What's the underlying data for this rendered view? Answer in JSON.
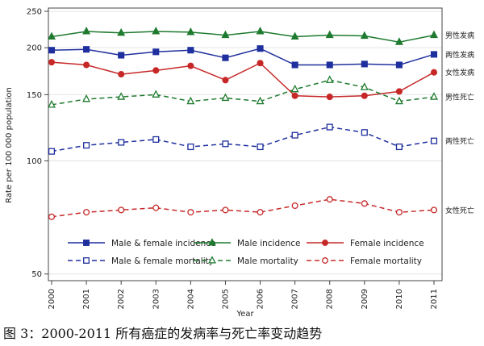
{
  "chart_data": {
    "type": "line",
    "xlabel": "Year",
    "ylabel": "Rate per 100 000 population",
    "y_scale": "log",
    "ylim": [
      48,
      255
    ],
    "y_ticks": [
      50,
      100,
      150,
      200,
      250
    ],
    "x": [
      2000,
      2001,
      2002,
      2003,
      2004,
      2005,
      2006,
      2007,
      2008,
      2009,
      2010,
      2011
    ],
    "series": [
      {
        "name": "Male & female incidence",
        "end_label": "两性发病",
        "color": "#1f2f9e",
        "marker": "square",
        "filled": true,
        "dashed": false,
        "values": [
          197,
          198,
          191,
          195,
          197,
          188,
          199,
          180,
          180,
          181,
          180,
          192
        ]
      },
      {
        "name": "Male incidence",
        "end_label": "男性发病",
        "color": "#1e7a2e",
        "marker": "triangle",
        "filled": true,
        "dashed": false,
        "values": [
          214,
          221,
          219,
          221,
          220,
          216,
          221,
          214,
          216,
          215,
          207,
          216
        ]
      },
      {
        "name": "Female incidence",
        "end_label": "女性发病",
        "color": "#c62828",
        "marker": "circle",
        "filled": true,
        "dashed": false,
        "values": [
          183,
          180,
          170,
          174,
          179,
          164,
          182,
          149,
          148,
          149,
          153,
          172
        ]
      },
      {
        "name": "Male & female mortality",
        "end_label": "两性死亡",
        "color": "#1f2f9e",
        "marker": "square",
        "filled": false,
        "dashed": true,
        "values": [
          106,
          110,
          112,
          114,
          109,
          111,
          109,
          117,
          123,
          119,
          109,
          113
        ]
      },
      {
        "name": "Male mortality",
        "end_label": "男性死亡",
        "color": "#1e7a2e",
        "marker": "triangle",
        "filled": false,
        "dashed": true,
        "values": [
          141,
          146,
          148,
          150,
          144,
          147,
          144,
          155,
          164,
          157,
          144,
          148
        ]
      },
      {
        "name": "Female mortality",
        "end_label": "女性死亡",
        "color": "#c62828",
        "marker": "circle",
        "filled": false,
        "dashed": true,
        "values": [
          71,
          73,
          74,
          75,
          73,
          74,
          73,
          76,
          79,
          77,
          73,
          74
        ]
      }
    ]
  },
  "caption": "图 3：2000-2011 所有癌症的发病率与死亡率变动趋势"
}
